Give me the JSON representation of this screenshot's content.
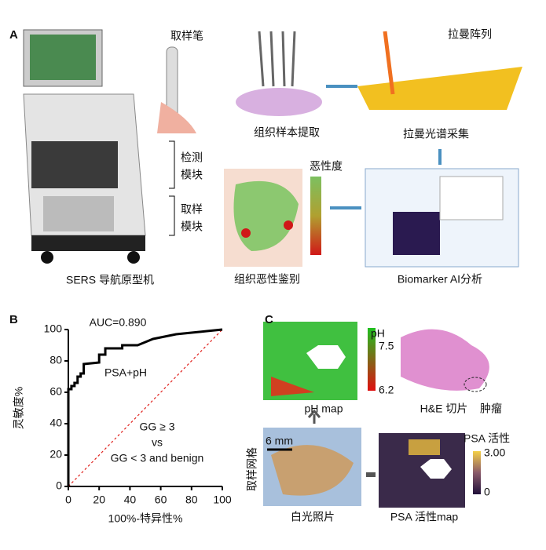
{
  "panel_labels": [
    "A",
    "B",
    "C"
  ],
  "panel_a": {
    "pen": "取样笔",
    "extraction": "组织样本提取",
    "raman_array": "拉曼阵列",
    "raman_collection": "拉曼光谱采集",
    "detect_module": [
      "检测",
      "模块"
    ],
    "sample_module": [
      "取样",
      "模块"
    ],
    "malignancy": "恶性度",
    "identification": "组织恶性鉴别",
    "ai": "Biomarker AI分析",
    "prototype": "SERS 导航原型机"
  },
  "chart_data": {
    "type": "line",
    "xlabel": "100%-特异性%",
    "ylabel": "灵敏度%",
    "annotations": [
      "AUC=0.890",
      "PSA+pH",
      "GG ≥ 3",
      "vs",
      "GG < 3 and benign"
    ],
    "x": [
      0,
      0,
      2,
      2,
      4,
      4,
      6,
      6,
      8,
      8,
      10,
      10,
      20,
      20,
      24,
      24,
      35,
      35,
      45,
      50,
      55,
      60,
      70,
      80,
      90,
      100
    ],
    "values": [
      0,
      62,
      62,
      64,
      64,
      66,
      66,
      70,
      70,
      72,
      72,
      78,
      79,
      84,
      84,
      88,
      88,
      90,
      90,
      92,
      94,
      95,
      97,
      98,
      99,
      100
    ],
    "color": "#000000",
    "reference_color": "#e0201c",
    "xlim": [
      0,
      100
    ],
    "ylim": [
      0,
      100
    ],
    "xticks": [
      0,
      20,
      40,
      60,
      80,
      100
    ],
    "yticks": [
      0,
      20,
      40,
      60,
      80,
      100
    ]
  },
  "panel_c": {
    "ph_label": "pH",
    "ph_max": "7.5",
    "ph_min": "6.2",
    "ph_map": "pH map",
    "he": "H&E 切片",
    "tumor": "肿瘤",
    "scale": "6 mm",
    "grid": "取样网格",
    "photo": "白光照片",
    "psa_label": "PSA 活性",
    "psa_max": "3.00",
    "psa_min": "0",
    "psa_map": "PSA 活性map"
  }
}
